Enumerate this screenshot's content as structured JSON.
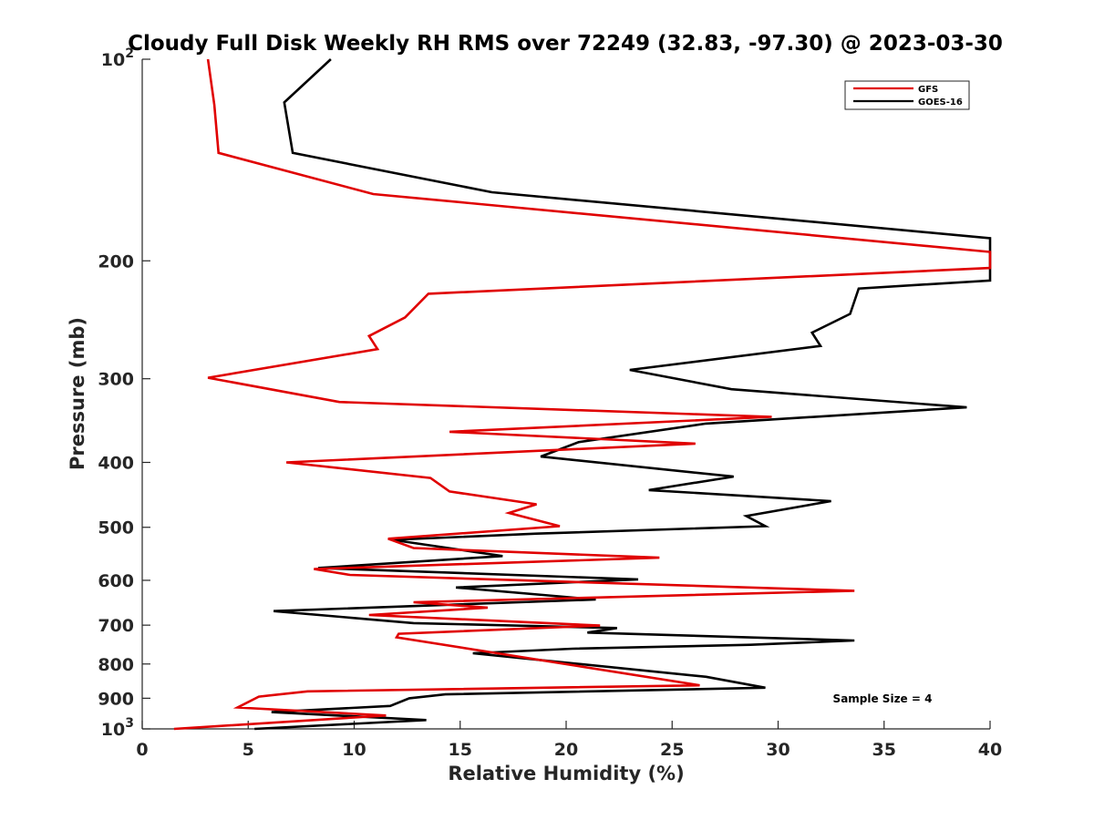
{
  "chart_data": {
    "type": "line",
    "title": "Cloudy Full Disk Weekly RH RMS over 72249 (32.83, -97.30) @ 2023-03-30",
    "xlabel": "Relative Humidity (%)",
    "ylabel": "Pressure (mb)",
    "xlim": [
      0,
      40
    ],
    "ylim": [
      100,
      1000
    ],
    "y_scale": "log",
    "y_reversed": true,
    "x_ticks": [
      "0",
      "5",
      "10",
      "15",
      "20",
      "25",
      "30",
      "35",
      "40"
    ],
    "y_ticks": [
      {
        "value": 100,
        "base": "10",
        "exp": "2"
      },
      {
        "value": 200,
        "label": "200"
      },
      {
        "value": 300,
        "label": "300"
      },
      {
        "value": 400,
        "label": "400"
      },
      {
        "value": 500,
        "label": "500"
      },
      {
        "value": 600,
        "label": "600"
      },
      {
        "value": 700,
        "label": "700"
      },
      {
        "value": 800,
        "label": "800"
      },
      {
        "value": 900,
        "label": "900"
      },
      {
        "value": 1000,
        "base": "10",
        "exp": "3"
      }
    ],
    "grid": false,
    "legend_position": "top-right",
    "annotation": "Sample Size = 4",
    "series": [
      {
        "name": "GFS",
        "color": "#e00000",
        "x": [
          3.1,
          3.4,
          3.6,
          10.9,
          40.0,
          40.0,
          13.5,
          12.4,
          10.7,
          11.1,
          3.1,
          9.3,
          29.7,
          14.5,
          26.1,
          6.8,
          13.6,
          14.5,
          18.6,
          17.3,
          19.7,
          11.6,
          12.8,
          24.4,
          8.1,
          9.8,
          33.6,
          12.8,
          16.3,
          10.7,
          21.6,
          12.1,
          12.0,
          26.3,
          7.8,
          5.5,
          4.5,
          11.5,
          1.5
        ],
        "y": [
          100,
          117,
          138,
          159,
          194,
          205,
          224,
          243,
          259,
          271,
          299,
          325,
          342,
          360,
          375,
          400,
          422,
          442,
          462,
          476,
          498,
          520,
          537,
          555,
          577,
          589,
          622,
          647,
          659,
          676,
          701,
          721,
          730,
          861,
          879,
          895,
          929,
          955,
          1000
        ]
      },
      {
        "name": "GOES-16",
        "color": "#000000",
        "x": [
          8.9,
          6.7,
          7.1,
          16.5,
          40.0,
          40.0,
          33.8,
          33.4,
          31.6,
          32.0,
          23.0,
          27.8,
          38.9,
          26.6,
          20.6,
          18.8,
          27.9,
          23.9,
          32.5,
          28.5,
          29.4,
          18.6,
          11.8,
          17.0,
          8.3,
          23.4,
          14.8,
          21.4,
          6.2,
          12.8,
          22.4,
          21.0,
          33.6,
          28.7,
          20.3,
          15.6,
          26.6,
          29.4,
          14.3,
          12.6,
          11.7,
          6.1,
          13.4,
          5.3
        ],
        "y": [
          100,
          116,
          138,
          158,
          185,
          214,
          220,
          240,
          256,
          268,
          291,
          311,
          331,
          350,
          373,
          392,
          420,
          440,
          457,
          481,
          498,
          511,
          522,
          552,
          575,
          598,
          615,
          641,
          667,
          695,
          707,
          718,
          738,
          749,
          759,
          771,
          836,
          868,
          888,
          900,
          924,
          944,
          970,
          1000
        ]
      }
    ]
  }
}
